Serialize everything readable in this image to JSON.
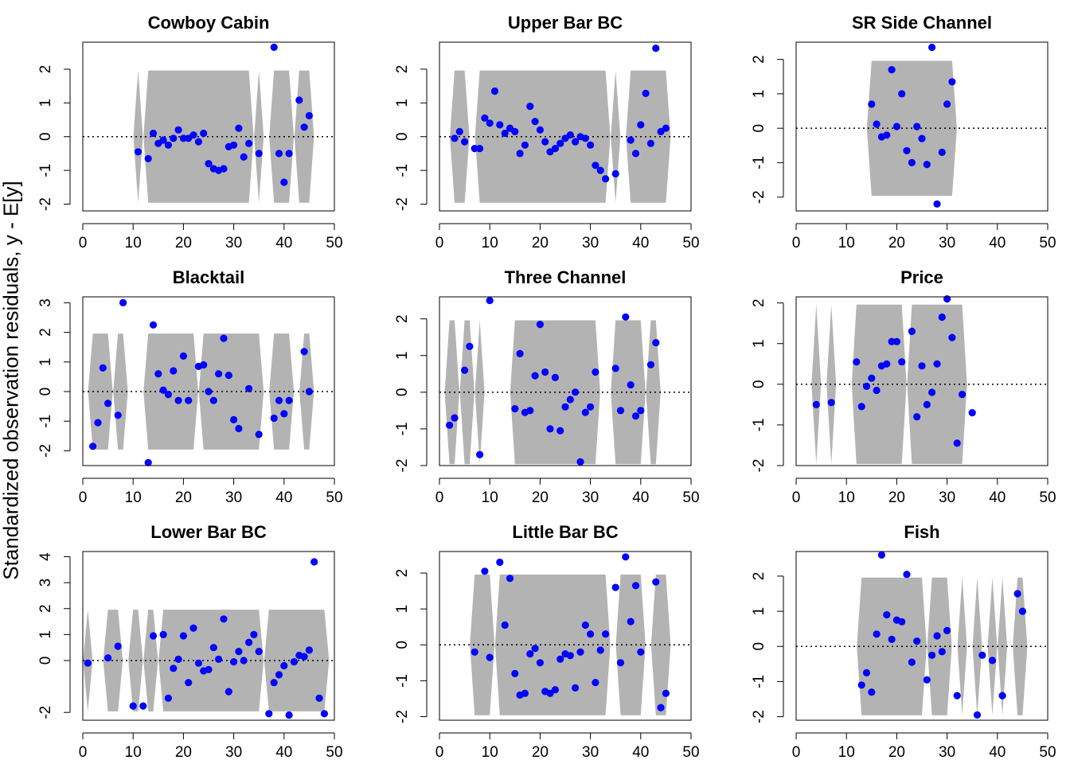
{
  "ylabel": "Standardized observation residuals, y - E[y]",
  "colors": {
    "point": "#0000ff",
    "band": "#b3b3b3",
    "axis": "#000000",
    "zero_line": "#000000"
  },
  "chart_data": [
    {
      "type": "scatter",
      "title": "Cowboy Cabin",
      "xlim": [
        0,
        50
      ],
      "xticks": [
        0,
        10,
        20,
        30,
        40,
        50
      ],
      "yticks": [
        -2,
        -1,
        0,
        1,
        2
      ],
      "ylim": [
        -2.2,
        2.8
      ],
      "band_runs": [
        [
          11,
          11
        ],
        [
          13,
          33
        ],
        [
          35,
          35
        ],
        [
          38,
          41
        ],
        [
          43,
          45
        ]
      ],
      "points": [
        [
          11,
          -0.45
        ],
        [
          13,
          -0.65
        ],
        [
          14,
          0.1
        ],
        [
          15,
          -0.2
        ],
        [
          16,
          -0.1
        ],
        [
          17,
          -0.25
        ],
        [
          18,
          -0.05
        ],
        [
          19,
          0.2
        ],
        [
          20,
          -0.05
        ],
        [
          21,
          -0.05
        ],
        [
          22,
          0.05
        ],
        [
          23,
          -0.15
        ],
        [
          24,
          0.1
        ],
        [
          25,
          -0.8
        ],
        [
          26,
          -0.95
        ],
        [
          27,
          -1.0
        ],
        [
          28,
          -0.95
        ],
        [
          29,
          -0.3
        ],
        [
          30,
          -0.25
        ],
        [
          31,
          0.25
        ],
        [
          32,
          -0.6
        ],
        [
          33,
          -0.2
        ],
        [
          35,
          -0.5
        ],
        [
          38,
          2.65
        ],
        [
          39,
          -0.5
        ],
        [
          40,
          -1.35
        ],
        [
          41,
          -0.5
        ],
        [
          43,
          1.08
        ],
        [
          44,
          0.28
        ],
        [
          45,
          0.62
        ]
      ]
    },
    {
      "type": "scatter",
      "title": "Upper Bar BC",
      "xlim": [
        0,
        50
      ],
      "xticks": [
        0,
        10,
        20,
        30,
        40,
        50
      ],
      "yticks": [
        -2,
        -1,
        0,
        1,
        2
      ],
      "ylim": [
        -2.2,
        2.8
      ],
      "band_runs": [
        [
          3,
          5
        ],
        [
          8,
          33
        ],
        [
          35,
          35
        ],
        [
          38,
          45
        ]
      ],
      "points": [
        [
          3,
          -0.05
        ],
        [
          4,
          0.15
        ],
        [
          5,
          -0.15
        ],
        [
          7,
          -0.35
        ],
        [
          8,
          -0.35
        ],
        [
          9,
          0.55
        ],
        [
          10,
          0.4
        ],
        [
          11,
          1.35
        ],
        [
          12,
          0.35
        ],
        [
          13,
          0.1
        ],
        [
          14,
          0.25
        ],
        [
          15,
          0.15
        ],
        [
          16,
          -0.5
        ],
        [
          17,
          -0.25
        ],
        [
          18,
          0.9
        ],
        [
          19,
          0.45
        ],
        [
          20,
          0.2
        ],
        [
          21,
          -0.15
        ],
        [
          22,
          -0.45
        ],
        [
          23,
          -0.35
        ],
        [
          24,
          -0.2
        ],
        [
          25,
          -0.05
        ],
        [
          26,
          0.05
        ],
        [
          27,
          -0.15
        ],
        [
          28,
          0.0
        ],
        [
          29,
          -0.05
        ],
        [
          30,
          -0.25
        ],
        [
          31,
          -0.85
        ],
        [
          32,
          -1.0
        ],
        [
          33,
          -1.25
        ],
        [
          35,
          -1.1
        ],
        [
          38,
          -0.1
        ],
        [
          39,
          -0.5
        ],
        [
          40,
          0.35
        ],
        [
          41,
          1.28
        ],
        [
          42,
          -0.2
        ],
        [
          43,
          2.62
        ],
        [
          44,
          0.15
        ],
        [
          45,
          0.25
        ]
      ]
    },
    {
      "type": "scatter",
      "title": "SR Side Channel",
      "xlim": [
        0,
        50
      ],
      "xticks": [
        0,
        10,
        20,
        30,
        40,
        50
      ],
      "yticks": [
        -2,
        -1,
        0,
        1,
        2
      ],
      "ylim": [
        -2.4,
        2.5
      ],
      "band_runs": [
        [
          15,
          31
        ]
      ],
      "points": [
        [
          15,
          0.7
        ],
        [
          16,
          0.12
        ],
        [
          17,
          -0.25
        ],
        [
          18,
          -0.2
        ],
        [
          19,
          1.7
        ],
        [
          20,
          0.05
        ],
        [
          21,
          1.0
        ],
        [
          22,
          -0.65
        ],
        [
          23,
          -1.0
        ],
        [
          24,
          0.05
        ],
        [
          25,
          -0.3
        ],
        [
          26,
          -1.05
        ],
        [
          27,
          2.35
        ],
        [
          28,
          -2.2
        ],
        [
          29,
          -0.7
        ],
        [
          30,
          0.7
        ],
        [
          31,
          1.35
        ]
      ]
    },
    {
      "type": "scatter",
      "title": "Blacktail",
      "xlim": [
        0,
        50
      ],
      "xticks": [
        0,
        10,
        20,
        30,
        40,
        50
      ],
      "yticks": [
        -2,
        -1,
        0,
        1,
        2,
        3
      ],
      "ylim": [
        -2.5,
        3.2
      ],
      "band_runs": [
        [
          2,
          5
        ],
        [
          7,
          8
        ],
        [
          13,
          22
        ],
        [
          24,
          35
        ],
        [
          38,
          41
        ],
        [
          44,
          45
        ]
      ],
      "points": [
        [
          2,
          -1.85
        ],
        [
          3,
          -1.05
        ],
        [
          4,
          0.8
        ],
        [
          5,
          -0.4
        ],
        [
          7,
          -0.8
        ],
        [
          8,
          3.0
        ],
        [
          13,
          -2.4
        ],
        [
          14,
          2.25
        ],
        [
          15,
          0.6
        ],
        [
          16,
          0.05
        ],
        [
          17,
          -0.1
        ],
        [
          18,
          0.7
        ],
        [
          19,
          -0.3
        ],
        [
          20,
          1.2
        ],
        [
          21,
          -0.3
        ],
        [
          23,
          0.85
        ],
        [
          24,
          0.9
        ],
        [
          25,
          0.0
        ],
        [
          26,
          -0.3
        ],
        [
          27,
          0.6
        ],
        [
          28,
          1.8
        ],
        [
          29,
          0.55
        ],
        [
          30,
          -0.95
        ],
        [
          31,
          -1.25
        ],
        [
          33,
          0.1
        ],
        [
          35,
          -1.45
        ],
        [
          38,
          -0.9
        ],
        [
          39,
          -0.3
        ],
        [
          40,
          -0.75
        ],
        [
          41,
          -0.3
        ],
        [
          44,
          1.35
        ],
        [
          45,
          0.0
        ]
      ]
    },
    {
      "type": "scatter",
      "title": "Three Channel",
      "xlim": [
        0,
        50
      ],
      "xticks": [
        0,
        10,
        20,
        30,
        40,
        50
      ],
      "yticks": [
        -2,
        -1,
        0,
        1,
        2
      ],
      "ylim": [
        -2.0,
        2.6
      ],
      "band_runs": [
        [
          2,
          3
        ],
        [
          5,
          6
        ],
        [
          8,
          8
        ],
        [
          15,
          31
        ],
        [
          35,
          40
        ],
        [
          42,
          43
        ]
      ],
      "points": [
        [
          2,
          -0.9
        ],
        [
          3,
          -0.7
        ],
        [
          5,
          0.6
        ],
        [
          6,
          1.25
        ],
        [
          8,
          -1.7
        ],
        [
          10,
          2.5
        ],
        [
          15,
          -0.45
        ],
        [
          16,
          1.05
        ],
        [
          17,
          -0.55
        ],
        [
          18,
          -0.5
        ],
        [
          19,
          0.45
        ],
        [
          20,
          1.85
        ],
        [
          21,
          0.55
        ],
        [
          22,
          -1.0
        ],
        [
          23,
          0.4
        ],
        [
          24,
          -1.05
        ],
        [
          25,
          -0.4
        ],
        [
          26,
          -0.2
        ],
        [
          27,
          0.0
        ],
        [
          28,
          -1.9
        ],
        [
          29,
          -0.55
        ],
        [
          30,
          -0.4
        ],
        [
          31,
          0.55
        ],
        [
          35,
          0.65
        ],
        [
          36,
          -0.5
        ],
        [
          37,
          2.05
        ],
        [
          38,
          0.2
        ],
        [
          39,
          -0.65
        ],
        [
          40,
          -0.5
        ],
        [
          42,
          0.75
        ],
        [
          43,
          1.35
        ]
      ]
    },
    {
      "type": "scatter",
      "title": "Price",
      "xlim": [
        0,
        50
      ],
      "xticks": [
        0,
        10,
        20,
        30,
        40,
        50
      ],
      "yticks": [
        -2,
        -1,
        0,
        1,
        2
      ],
      "ylim": [
        -2.0,
        2.15
      ],
      "band_runs": [
        [
          4,
          4
        ],
        [
          7,
          7
        ],
        [
          12,
          21
        ],
        [
          23,
          33
        ]
      ],
      "points": [
        [
          4,
          -0.5
        ],
        [
          7,
          -0.45
        ],
        [
          12,
          0.55
        ],
        [
          13,
          -0.55
        ],
        [
          14,
          -0.05
        ],
        [
          15,
          0.15
        ],
        [
          16,
          -0.15
        ],
        [
          17,
          0.45
        ],
        [
          18,
          0.5
        ],
        [
          19,
          1.05
        ],
        [
          20,
          1.05
        ],
        [
          21,
          0.55
        ],
        [
          23,
          1.3
        ],
        [
          24,
          -0.8
        ],
        [
          25,
          0.45
        ],
        [
          26,
          -0.5
        ],
        [
          27,
          -0.2
        ],
        [
          28,
          0.5
        ],
        [
          29,
          1.65
        ],
        [
          30,
          2.1
        ],
        [
          31,
          1.15
        ],
        [
          32,
          -1.45
        ],
        [
          33,
          -0.25
        ],
        [
          35,
          -0.7
        ]
      ]
    },
    {
      "type": "scatter",
      "title": "Lower Bar BC",
      "xlim": [
        0,
        50
      ],
      "xticks": [
        0,
        10,
        20,
        30,
        40,
        50
      ],
      "yticks": [
        -2,
        0,
        1,
        2,
        3,
        4
      ],
      "ylim": [
        -2.3,
        4.2
      ],
      "band_runs": [
        [
          1,
          1
        ],
        [
          5,
          7
        ],
        [
          10,
          11
        ],
        [
          13,
          14
        ],
        [
          16,
          35
        ],
        [
          37,
          48
        ]
      ],
      "points": [
        [
          1,
          -0.1
        ],
        [
          5,
          0.1
        ],
        [
          7,
          0.55
        ],
        [
          10,
          -1.75
        ],
        [
          12,
          -1.75
        ],
        [
          14,
          0.95
        ],
        [
          16,
          1.0
        ],
        [
          17,
          -1.45
        ],
        [
          18,
          -0.3
        ],
        [
          19,
          0.05
        ],
        [
          20,
          0.95
        ],
        [
          21,
          -0.85
        ],
        [
          22,
          1.25
        ],
        [
          23,
          -0.1
        ],
        [
          24,
          -0.4
        ],
        [
          25,
          -0.35
        ],
        [
          26,
          0.5
        ],
        [
          27,
          0.05
        ],
        [
          28,
          1.6
        ],
        [
          29,
          -1.2
        ],
        [
          30,
          -0.05
        ],
        [
          31,
          0.35
        ],
        [
          32,
          0.0
        ],
        [
          33,
          0.7
        ],
        [
          34,
          1.0
        ],
        [
          35,
          0.35
        ],
        [
          37,
          -2.05
        ],
        [
          38,
          -0.85
        ],
        [
          39,
          -0.55
        ],
        [
          40,
          -0.2
        ],
        [
          41,
          -2.1
        ],
        [
          42,
          -0.05
        ],
        [
          43,
          0.2
        ],
        [
          44,
          0.15
        ],
        [
          45,
          0.4
        ],
        [
          46,
          3.8
        ],
        [
          47,
          -1.45
        ],
        [
          48,
          -2.05
        ]
      ]
    },
    {
      "type": "scatter",
      "title": "Little Bar BC",
      "xlim": [
        0,
        50
      ],
      "xticks": [
        0,
        10,
        20,
        30,
        40,
        50
      ],
      "yticks": [
        -2,
        -1,
        0,
        1,
        2
      ],
      "ylim": [
        -2.1,
        2.6
      ],
      "band_runs": [
        [
          7,
          10
        ],
        [
          12,
          33
        ],
        [
          36,
          40
        ],
        [
          43,
          45
        ]
      ],
      "points": [
        [
          7,
          -0.2
        ],
        [
          9,
          2.05
        ],
        [
          10,
          -0.35
        ],
        [
          12,
          2.3
        ],
        [
          13,
          0.55
        ],
        [
          14,
          1.85
        ],
        [
          15,
          -0.8
        ],
        [
          16,
          -1.4
        ],
        [
          17,
          -1.35
        ],
        [
          18,
          -0.25
        ],
        [
          19,
          -0.1
        ],
        [
          20,
          -0.5
        ],
        [
          21,
          -1.3
        ],
        [
          22,
          -1.35
        ],
        [
          23,
          -1.25
        ],
        [
          24,
          -0.4
        ],
        [
          25,
          -0.25
        ],
        [
          26,
          -0.3
        ],
        [
          27,
          -1.2
        ],
        [
          28,
          -0.2
        ],
        [
          29,
          0.55
        ],
        [
          30,
          0.3
        ],
        [
          31,
          -1.05
        ],
        [
          32,
          -0.15
        ],
        [
          33,
          0.3
        ],
        [
          35,
          1.6
        ],
        [
          36,
          -0.5
        ],
        [
          37,
          2.45
        ],
        [
          38,
          0.65
        ],
        [
          39,
          1.65
        ],
        [
          40,
          -0.2
        ],
        [
          43,
          1.75
        ],
        [
          44,
          -1.75
        ],
        [
          45,
          -1.35
        ]
      ]
    },
    {
      "type": "scatter",
      "title": "Fish",
      "xlim": [
        0,
        50
      ],
      "xticks": [
        0,
        10,
        20,
        30,
        40,
        50
      ],
      "yticks": [
        -2,
        -1,
        0,
        1,
        2
      ],
      "ylim": [
        -2.1,
        2.7
      ],
      "band_runs": [
        [
          13,
          25
        ],
        [
          27,
          30
        ],
        [
          33,
          33
        ],
        [
          36,
          36
        ],
        [
          39,
          39
        ],
        [
          41,
          41
        ],
        [
          44,
          45
        ]
      ],
      "points": [
        [
          13,
          -1.1
        ],
        [
          14,
          -0.75
        ],
        [
          15,
          -1.3
        ],
        [
          16,
          0.35
        ],
        [
          17,
          2.6
        ],
        [
          18,
          0.9
        ],
        [
          19,
          0.2
        ],
        [
          20,
          0.75
        ],
        [
          21,
          0.7
        ],
        [
          22,
          2.05
        ],
        [
          23,
          -0.45
        ],
        [
          24,
          0.15
        ],
        [
          26,
          -0.95
        ],
        [
          27,
          -0.25
        ],
        [
          28,
          0.3
        ],
        [
          29,
          -0.15
        ],
        [
          30,
          0.45
        ],
        [
          32,
          -1.4
        ],
        [
          36,
          -1.95
        ],
        [
          37,
          -0.25
        ],
        [
          39,
          -0.4
        ],
        [
          41,
          -1.4
        ],
        [
          44,
          1.5
        ],
        [
          45,
          1.0
        ]
      ]
    }
  ]
}
